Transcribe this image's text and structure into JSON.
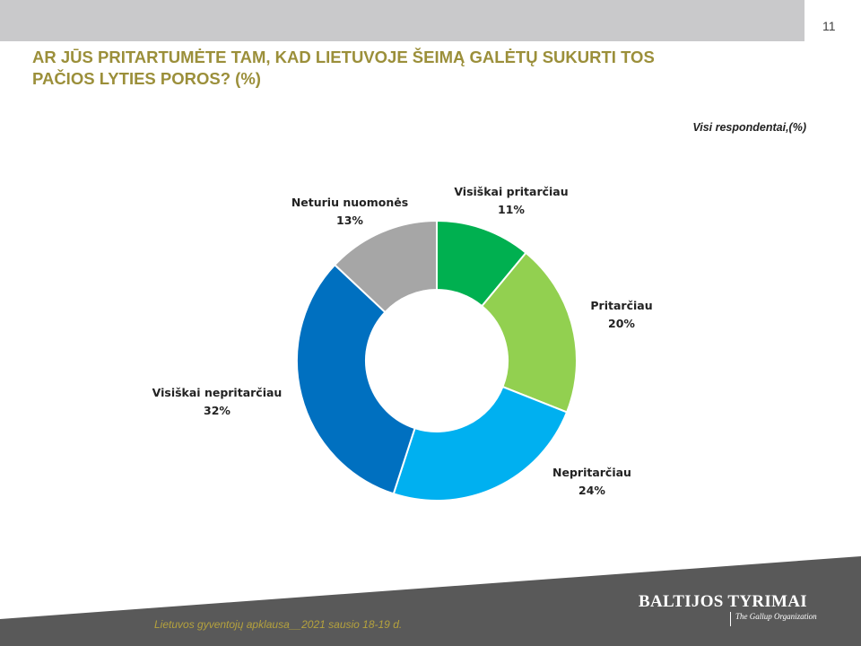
{
  "page": {
    "number": "11",
    "title_line1": "AR JŪS PRITARTUMĖTE TAM, KAD LIETUVOJE ŠEIMĄ GALĖTŲ SUKURTI TOS",
    "title_line2": "PAČIOS LYTIES POROS? (%)",
    "respondents": "Visi respondentai,(%)",
    "footer": "Lietuvos gyventojų apklausa__2021 sausio 18-19 d.",
    "logo_main": "BALTIJOS TYRIMAI",
    "logo_sub": "The Gallup Organization"
  },
  "chart_data": {
    "type": "pie",
    "donut": true,
    "title": "AR JŪS PRITARTUMĖTE TAM, KAD LIETUVOJE ŠEIMĄ GALĖTŲ SUKURTI TOS PAČIOS LYTIES POROS? (%)",
    "categories": [
      "Visiškai pritarčiau",
      "Pritarčiau",
      "Nepritarčiau",
      "Visiškai nepritarčiau",
      "Neturiu nuomonės"
    ],
    "values": [
      11,
      20,
      24,
      32,
      13
    ],
    "value_labels": [
      "11%",
      "20%",
      "24%",
      "32%",
      "13%"
    ],
    "colors": [
      "#00b050",
      "#92d050",
      "#00b0f0",
      "#0070c0",
      "#a6a6a6"
    ]
  }
}
